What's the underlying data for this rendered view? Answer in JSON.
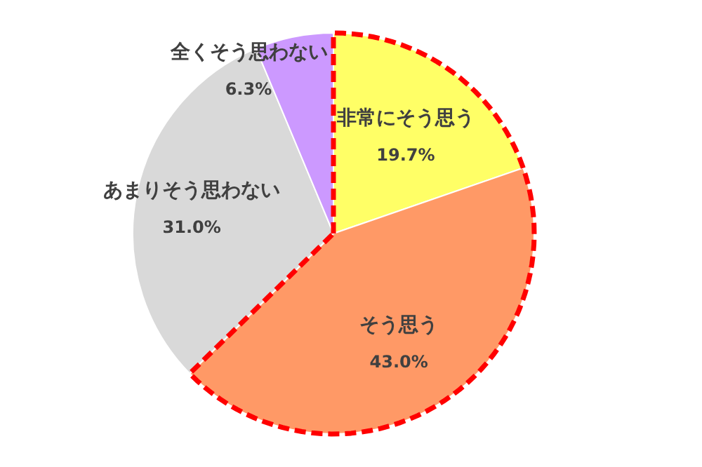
{
  "chart_data": {
    "type": "pie",
    "categories": [
      "非常にそう思う",
      "そう思う",
      "あまりそう思わない",
      "全くそう思わない"
    ],
    "values": [
      19.7,
      43.0,
      31.0,
      6.3
    ],
    "value_labels": [
      "19.7%",
      "43.0%",
      "31.0%",
      "6.3%"
    ],
    "colors": [
      "#ffff66",
      "#ff9966",
      "#d9d9d9",
      "#cc99ff"
    ]
  }
}
